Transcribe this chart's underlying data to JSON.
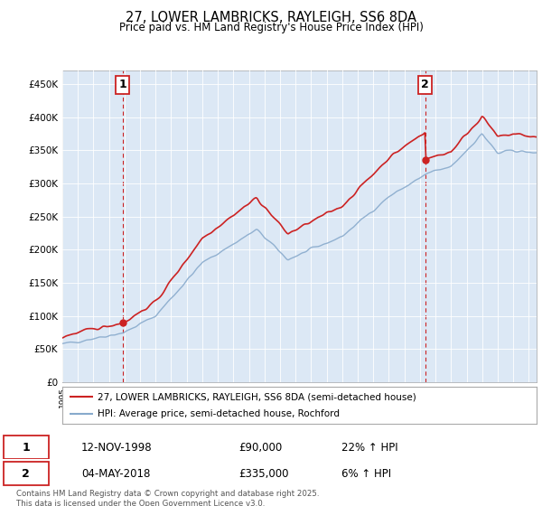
{
  "title": "27, LOWER LAMBRICKS, RAYLEIGH, SS6 8DA",
  "subtitle": "Price paid vs. HM Land Registry's House Price Index (HPI)",
  "legend_line1": "27, LOWER LAMBRICKS, RAYLEIGH, SS6 8DA (semi-detached house)",
  "legend_line2": "HPI: Average price, semi-detached house, Rochford",
  "annotation1_date": "12-NOV-1998",
  "annotation1_price": "£90,000",
  "annotation1_hpi": "22% ↑ HPI",
  "annotation2_date": "04-MAY-2018",
  "annotation2_price": "£335,000",
  "annotation2_hpi": "6% ↑ HPI",
  "footnote": "Contains HM Land Registry data © Crown copyright and database right 2025.\nThis data is licensed under the Open Government Licence v3.0.",
  "red_color": "#cc2222",
  "blue_color": "#88aacc",
  "fill_color": "#ddeeff",
  "grid_color": "#cccccc",
  "background_color": "#ffffff",
  "ylim": [
    0,
    470000
  ],
  "yticks": [
    0,
    50000,
    100000,
    150000,
    200000,
    250000,
    300000,
    350000,
    400000,
    450000
  ],
  "ytick_labels": [
    "£0",
    "£50K",
    "£100K",
    "£150K",
    "£200K",
    "£250K",
    "£300K",
    "£350K",
    "£400K",
    "£450K"
  ],
  "sale1_x": 1998.87,
  "sale1_y": 90000,
  "sale2_x": 2018.34,
  "sale2_y": 335000,
  "xmin": 1995.0,
  "xmax": 2025.5
}
